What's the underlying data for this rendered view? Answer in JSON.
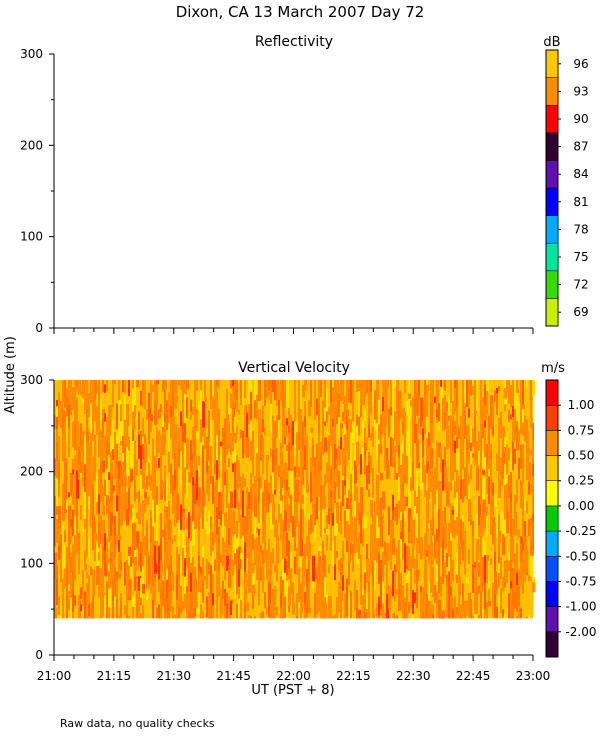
{
  "page_title": "Dixon, CA 13 March 2007  Day  72",
  "footnote": "Raw data, no quality checks",
  "y_axis_label": "Altitude (m)",
  "x_axis_label": "UT  (PST + 8)",
  "x_ticks": [
    "21:00",
    "21:15",
    "21:30",
    "21:45",
    "22:00",
    "22:15",
    "22:30",
    "22:45",
    "23:00"
  ],
  "chart_data": [
    {
      "type": "heatmap",
      "title": "Reflectivity",
      "xlabel": "UT  (PST + 8)",
      "ylabel": "Altitude (m)",
      "xlim": [
        "21:00",
        "23:00"
      ],
      "ylim": [
        0,
        300
      ],
      "y_ticks": [
        0,
        100,
        200,
        300
      ],
      "values": [],
      "colorbar": {
        "unit": "dB",
        "levels": [
          "69",
          "72",
          "75",
          "78",
          "81",
          "84",
          "87",
          "90",
          "93",
          "96"
        ],
        "colors": [
          "#c8f000",
          "#33dd00",
          "#00e6a0",
          "#00aaff",
          "#0000ff",
          "#6010b0",
          "#300030",
          "#ff0000",
          "#ff8c00",
          "#ffc800"
        ]
      }
    },
    {
      "type": "heatmap",
      "title": "Vertical Velocity",
      "xlabel": "UT  (PST + 8)",
      "ylabel": "Altitude (m)",
      "xlim": [
        "21:00",
        "23:00"
      ],
      "ylim": [
        0,
        300
      ],
      "y_ticks": [
        0,
        100,
        200,
        300
      ],
      "data_altitude_range": [
        40,
        300
      ],
      "value_range": [
        0.25,
        1.0
      ],
      "colorbar": {
        "unit": "m/s",
        "levels": [
          "-2.00",
          "-1.00",
          "-0.75",
          "-0.50",
          "-0.25",
          "0.00",
          "0.25",
          "0.50",
          "0.75",
          "1.00"
        ],
        "colors": [
          "#300030",
          "#6010b0",
          "#0000ff",
          "#0050ff",
          "#00aaff",
          "#00cc00",
          "#ffff00",
          "#ffc800",
          "#ff8c00",
          "#ff4000",
          "#ff0000"
        ]
      }
    }
  ]
}
